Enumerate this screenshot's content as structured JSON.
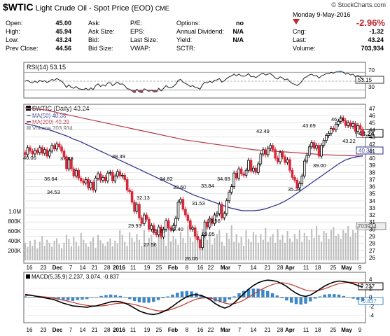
{
  "header": {
    "symbol": "$WTIC",
    "description": "Light Crude Oil - Spot Price (EOD)",
    "exchange": "CME",
    "copyright": "© StockCharts.com",
    "date": "Monday  9-May-2016",
    "change_pct": "-2.96%"
  },
  "quote": {
    "open_label": "Open:",
    "open": "45.00",
    "high_label": "High:",
    "high": "45.94",
    "low_label": "Low:",
    "low": "43.24",
    "prevclose_label": "Prev Close:",
    "prevclose": "44.56",
    "ask_label": "Ask:",
    "asksize_label": "Ask Size:",
    "bid_label": "Bid:",
    "bidsize_label": "Bid Size:",
    "pe_label": "P/E:",
    "eps_label": "EPS:",
    "lastsize_label": "Last Size:",
    "vwap_label": "VWAP:",
    "options_label": "Options:",
    "options": "no",
    "dividend_label": "Annual Dividend:",
    "dividend": "N/A",
    "yield_label": "Yield:",
    "yield": "N/A",
    "sctr_label": "SCTR:",
    "chg_label": "Cng:",
    "chg": "-1.32",
    "last_label": "Last:",
    "last": "43.24",
    "volume_label": "Volume:",
    "volume": "703,934"
  },
  "rsi_panel": {
    "label": "RSI(14) 53.15",
    "value_tag": "53.15",
    "levels": [
      "70",
      "50",
      "30"
    ]
  },
  "price_panel": {
    "legend_title": "$WTIC (Daily) 43.24",
    "legend_ma50": "MA(50) 40.36",
    "legend_ma200": "MA(200) 40.29",
    "legend_volume": "Volume 703,934",
    "price_tag": "43.24",
    "ma_tag": "40.36",
    "volume_tag": "703934",
    "volume_axis": [
      "1.0M",
      "800K",
      "600K",
      "400K",
      "200K"
    ]
  },
  "macd_panel": {
    "label": "MACD(5,35,9) 2.237, 3.074, -0.837",
    "tag1": "2.237",
    "tag2": "-0.837"
  },
  "colors": {
    "up": "#000000",
    "down": "#d42a3c",
    "ma50": "#2b2f8a",
    "ma200": "#b03a48",
    "volume": "#bdbdbd",
    "macd": "#000000",
    "signal": "#c0392b",
    "hist": "#3a86c8"
  },
  "chart_data": {
    "type": "candlestick",
    "y_ticks": [
      "47",
      "46",
      "45",
      "44",
      "43",
      "42",
      "41",
      "40",
      "39",
      "38",
      "37",
      "36",
      "35",
      "34",
      "33",
      "32",
      "31",
      "30",
      "29",
      "28",
      "27",
      "26"
    ],
    "x_ticks": [
      "16",
      "23",
      "Dec",
      "7",
      "14",
      "21",
      "28",
      "2016",
      "11",
      "19",
      "25",
      "Feb",
      "8",
      "16",
      "22",
      "Mar",
      "7",
      "14",
      "21",
      "28",
      "Apr",
      "11",
      "18",
      "25",
      "May",
      "9"
    ],
    "macd_ticks": [
      "4",
      "2",
      "0",
      "-2",
      "-4"
    ],
    "annotations": [
      "46.78",
      "43.69",
      "43.22",
      "42.49",
      "40.06",
      "39.00",
      "38.39",
      "37.88",
      "36.64",
      "35.24",
      "34.82",
      "34.69",
      "34.53",
      "33.84",
      "33.60",
      "32.13",
      "31.53",
      "30.56",
      "29.93",
      "29.40",
      "29.25",
      "29.05",
      "27.56",
      "26.05"
    ],
    "close": [
      40.5,
      41.5,
      41.0,
      40.6,
      41.1,
      40.8,
      41.5,
      40.7,
      41.2,
      40.3,
      41.0,
      41.8,
      41.3,
      42.0,
      41.6,
      41.0,
      40.2,
      38.5,
      39.8,
      38.5,
      37.5,
      38.3,
      37.2,
      36.8,
      36.5,
      37.0,
      35.8,
      36.6,
      35.5,
      37.2,
      37.8,
      36.9,
      37.3,
      36.8,
      37.9,
      38.0,
      36.8,
      37.5,
      38.1,
      37.5,
      37.6,
      37.0,
      35.5,
      35.3,
      33.8,
      32.5,
      33.5,
      31.6,
      30.8,
      32.0,
      31.4,
      30.0,
      30.5,
      29.5,
      29.2,
      30.3,
      28.9,
      30.0,
      31.2,
      30.2,
      29.9,
      30.5,
      31.5,
      33.8,
      34.2,
      32.8,
      32.0,
      31.2,
      30.0,
      30.2,
      29.0,
      28.5,
      27.4,
      29.1,
      31.0,
      30.3,
      31.5,
      30.8,
      32.0,
      32.2,
      33.5,
      31.6,
      32.2,
      34.0,
      35.2,
      36.0,
      37.9,
      37.2,
      38.5,
      37.8,
      37.6,
      38.3,
      39.7,
      38.2,
      38.6,
      38.0,
      39.2,
      40.6,
      41.2,
      40.5,
      41.4,
      41.8,
      41.2,
      40.0,
      39.5,
      40.8,
      40.2,
      39.4,
      39.8,
      38.3,
      37.3,
      36.9,
      35.8,
      36.4,
      37.5,
      39.6,
      40.4,
      41.6,
      42.2,
      41.4,
      41.8,
      40.3,
      41.8,
      42.5,
      43.2,
      43.5,
      44.2,
      44.0,
      44.8,
      45.2,
      45.7,
      45.3,
      44.6,
      45.0,
      44.5,
      44.9,
      43.8,
      44.6,
      44.1,
      43.2
    ],
    "volume_k": [
      360,
      280,
      400,
      300,
      420,
      250,
      380,
      500,
      300,
      420,
      360,
      280,
      400,
      450,
      330,
      250,
      360,
      520,
      440,
      290,
      480,
      380,
      300,
      560,
      420,
      350,
      280,
      390,
      470,
      260,
      520,
      410,
      340,
      300,
      380,
      450,
      290,
      400,
      340,
      620,
      520,
      380,
      300,
      570,
      460,
      380,
      540,
      420,
      300,
      620,
      340,
      460,
      520,
      380,
      280,
      640,
      560,
      420,
      300,
      680,
      390,
      500,
      440,
      320,
      580,
      460,
      350,
      720,
      470,
      380,
      560,
      600,
      270,
      640,
      500,
      420,
      580,
      320,
      460,
      540,
      620,
      380,
      300,
      560,
      440,
      720,
      380,
      540,
      360,
      480,
      300,
      620,
      440,
      380,
      580,
      520,
      360,
      540,
      420,
      660,
      380,
      480,
      540,
      360,
      640,
      420,
      520,
      360,
      600,
      450,
      380,
      540,
      440,
      620,
      380,
      560,
      500,
      420,
      640,
      460,
      700,
      520,
      380,
      600,
      560,
      440,
      620,
      680,
      500,
      540,
      440,
      620,
      560,
      700,
      480,
      620,
      560,
      704
    ],
    "ma50": [
      44.9,
      44.7,
      44.5,
      44.2,
      44.0,
      43.7,
      43.4,
      43.1,
      42.7,
      42.4,
      42.0,
      41.6,
      41.2,
      40.8,
      40.4,
      40.0,
      39.6,
      39.2,
      38.8,
      38.4,
      38.0,
      37.6,
      37.2,
      36.8,
      36.4,
      36.0,
      35.6,
      35.2,
      34.8,
      34.5,
      34.2,
      33.9,
      33.6,
      33.3,
      33.0,
      32.8,
      32.6,
      32.6,
      32.6,
      32.7,
      32.9,
      33.2,
      33.5,
      33.9,
      34.4,
      35.0,
      35.6,
      36.2,
      36.8,
      37.4,
      38.0,
      38.6,
      39.2,
      39.7,
      40.0,
      40.2,
      40.36
    ],
    "ma200": [
      47.1,
      47.0,
      46.8,
      46.5,
      46.2,
      45.9,
      45.6,
      45.3,
      45.0,
      44.7,
      44.4,
      44.1,
      43.8,
      43.5,
      43.2,
      42.9,
      42.6,
      42.4,
      42.2,
      42.0,
      41.8,
      41.6,
      41.4,
      41.2,
      41.1,
      41.0,
      40.9,
      40.8,
      40.7,
      40.6,
      40.5,
      40.45,
      40.4,
      40.35,
      40.29
    ],
    "rsi": [
      50,
      52,
      48,
      46,
      50,
      47,
      52,
      49,
      51,
      47,
      50,
      54,
      52,
      56,
      53,
      50,
      44,
      36,
      42,
      36,
      34,
      38,
      33,
      32,
      31,
      34,
      30,
      35,
      31,
      40,
      44,
      38,
      42,
      39,
      46,
      47,
      40,
      44,
      48,
      43,
      44,
      40,
      33,
      32,
      28,
      24,
      32,
      26,
      24,
      33,
      30,
      27,
      30,
      26,
      26,
      34,
      28,
      34,
      40,
      36,
      35,
      38,
      43,
      52,
      54,
      48,
      45,
      42,
      38,
      40,
      36,
      35,
      32,
      42,
      48,
      46,
      50,
      47,
      52,
      53,
      56,
      48,
      51,
      56,
      60,
      62,
      66,
      62,
      66,
      62,
      61,
      63,
      67,
      60,
      61,
      58,
      62,
      66,
      68,
      64,
      66,
      67,
      63,
      57,
      55,
      60,
      57,
      53,
      55,
      49,
      45,
      43,
      40,
      44,
      50,
      58,
      60,
      64,
      66,
      62,
      63,
      57,
      62,
      64,
      67,
      67,
      70,
      68,
      71,
      72,
      73,
      70,
      66,
      68,
      64,
      66,
      60,
      63,
      60,
      53.15
    ],
    "macd": [
      0.6,
      0.5,
      0.3,
      0.1,
      -0.1,
      -0.3,
      -0.5,
      -0.9,
      -1.3,
      -1.6,
      -1.9,
      -2.0,
      -2.1,
      -2.2,
      -2.0,
      -1.9,
      -1.6,
      -1.3,
      -1.0,
      -0.9,
      -1.0,
      -1.3,
      -1.8,
      -2.4,
      -3.0,
      -3.4,
      -3.7,
      -3.8,
      -3.6,
      -3.2,
      -2.7,
      -2.0,
      -1.2,
      -0.5,
      0.1,
      0.5,
      0.6,
      0.4,
      0.0,
      -0.6,
      -1.4,
      -2.0,
      -2.4,
      -2.0,
      -1.2,
      -0.2,
      0.8,
      1.8,
      2.6,
      3.2,
      3.6,
      3.8,
      3.7,
      3.5,
      3.0,
      2.4,
      1.6,
      0.9,
      0.4,
      0.2,
      0.5,
      1.1,
      1.8,
      2.5,
      3.0,
      3.4,
      3.6,
      3.5,
      3.3,
      3.0,
      2.6,
      2.237
    ],
    "signal": [
      0.4,
      0.4,
      0.3,
      0.2,
      0.1,
      0.0,
      -0.2,
      -0.4,
      -0.6,
      -0.9,
      -1.1,
      -1.4,
      -1.6,
      -1.8,
      -1.9,
      -1.9,
      -1.9,
      -1.8,
      -1.6,
      -1.4,
      -1.3,
      -1.3,
      -1.4,
      -1.6,
      -1.9,
      -2.2,
      -2.5,
      -2.8,
      -3.0,
      -3.0,
      -2.9,
      -2.6,
      -2.2,
      -1.8,
      -1.3,
      -0.8,
      -0.4,
      -0.2,
      -0.1,
      -0.2,
      -0.5,
      -0.9,
      -1.3,
      -1.5,
      -1.4,
      -1.1,
      -0.6,
      0.0,
      0.7,
      1.3,
      1.9,
      2.4,
      2.8,
      3.1,
      3.2,
      3.1,
      2.8,
      2.4,
      2.0,
      1.6,
      1.4,
      1.4,
      1.6,
      1.9,
      2.3,
      2.7,
      3.0,
      3.2,
      3.3,
      3.3,
      3.2,
      3.074
    ]
  }
}
